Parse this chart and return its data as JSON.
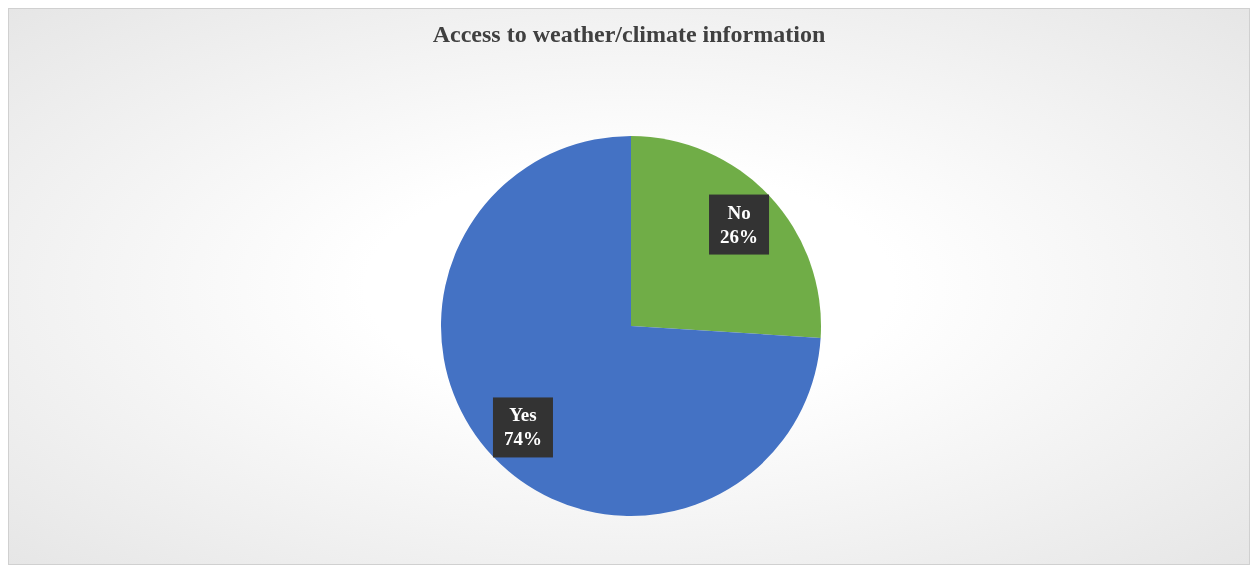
{
  "chart_data": {
    "type": "pie",
    "title": "Access to weather/climate information",
    "categories": [
      "No",
      "Yes"
    ],
    "values": [
      26,
      74
    ],
    "colors": [
      "#70ad47",
      "#4472c4"
    ],
    "value_labels": [
      "26%",
      "74%"
    ]
  }
}
